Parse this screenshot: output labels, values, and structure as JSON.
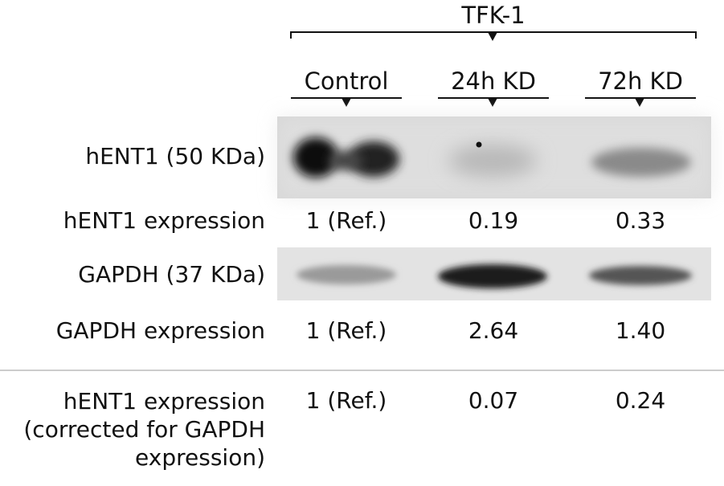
{
  "header": {
    "cell_line": "TFK-1",
    "lanes": [
      "Control",
      "24h KD",
      "72h KD"
    ]
  },
  "rows": [
    {
      "label": "hENT1 (50 KDa)",
      "type": "blot"
    },
    {
      "label": "hENT1 expression",
      "type": "values",
      "values": [
        "1 (Ref.)",
        "0.19",
        "0.33"
      ]
    },
    {
      "label": "GAPDH (37 KDa)",
      "type": "blot"
    },
    {
      "label": "GAPDH expression",
      "type": "values",
      "values": [
        "1 (Ref.)",
        "2.64",
        "1.40"
      ]
    }
  ],
  "corrected": {
    "label_lines": [
      "hENT1 expression",
      "(corrected for GAPDH",
      "expression)"
    ],
    "values": [
      "1 (Ref.)",
      "0.07",
      "0.24"
    ]
  },
  "colors": {
    "text": "#111111",
    "blot_bg": "#d9d9d9",
    "band": "#111111",
    "divider": "#bbbbbb"
  }
}
